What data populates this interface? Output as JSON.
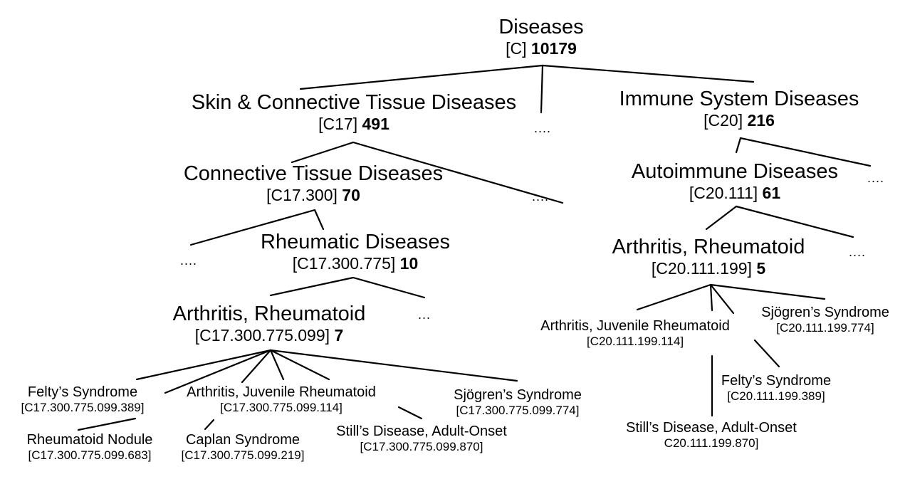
{
  "nodes": {
    "diseases": {
      "title": "Diseases",
      "code": "[C]",
      "count": "10179"
    },
    "skin": {
      "title": "Skin & Connective Tissue Diseases",
      "code": "[C17]",
      "count": "491"
    },
    "immune": {
      "title": "Immune System Diseases",
      "code": "[C20]",
      "count": "216"
    },
    "connective": {
      "title": "Connective Tissue Diseases",
      "code": "[C17.300]",
      "count": "70"
    },
    "autoimmune": {
      "title": "Autoimmune Diseases",
      "code": "[C20.111]",
      "count": "61"
    },
    "rheumatic": {
      "title": "Rheumatic Diseases",
      "code": "[C17.300.775]",
      "count": "10"
    },
    "ra_left": {
      "title": "Arthritis, Rheumatoid",
      "code": "[C17.300.775.099]",
      "count": "7"
    },
    "ra_right": {
      "title": "Arthritis, Rheumatoid",
      "code": "[C20.111.199]",
      "count": "5"
    },
    "l_felty": {
      "title": "Felty’s Syndrome",
      "code": "[C17.300.775.099.389]"
    },
    "l_jra": {
      "title": "Arthritis, Juvenile Rheumatoid",
      "code": "[C17.300.775.099.114]"
    },
    "l_sjogren": {
      "title": "Sjögren’s Syndrome",
      "code": "[C17.300.775.099.774]"
    },
    "l_nodule": {
      "title": "Rheumatoid Nodule",
      "code": "[C17.300.775.099.683]"
    },
    "l_caplan": {
      "title": "Caplan Syndrome",
      "code": "[C17.300.775.099.219]"
    },
    "l_still": {
      "title": "Still’s Disease, Adult-Onset",
      "code": "[C17.300.775.099.870]"
    },
    "r_jra": {
      "title": "Arthritis, Juvenile Rheumatoid",
      "code": "[C20.111.199.114]"
    },
    "r_sjogren": {
      "title": "Sjögren’s Syndrome",
      "code": "[C20.111.199.774]"
    },
    "r_felty": {
      "title": "Felty’s Syndrome",
      "code": "[C20.111.199.389]"
    },
    "r_still": {
      "title": "Still’s Disease, Adult-Onset",
      "code": "C20.111.199.870]"
    }
  },
  "ellipsis": "...."
}
